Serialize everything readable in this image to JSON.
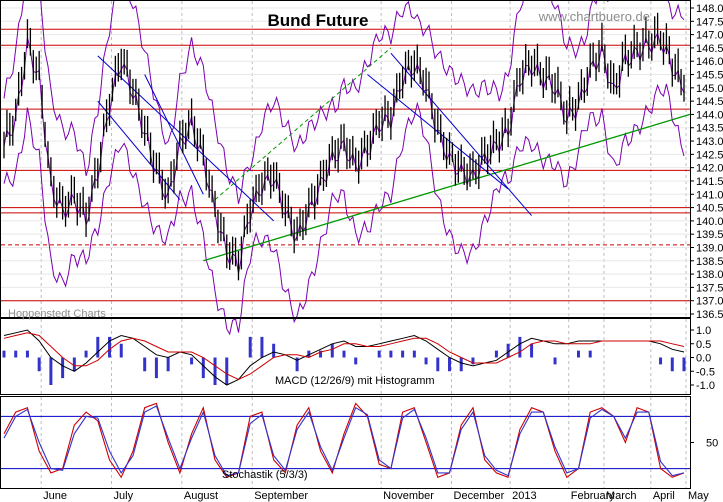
{
  "chart_data": [
    {
      "type": "line",
      "panel": "price",
      "title": "Bund Future",
      "watermark": "www.chartbuero.de",
      "source": "Hoppenstedt Charts",
      "ylim": [
        136.5,
        148.0
      ],
      "y_ticks": [
        "148.0",
        "147.5",
        "147.0",
        "146.5",
        "146.0",
        "145.5",
        "145.0",
        "144.5",
        "144.0",
        "143.5",
        "143.0",
        "142.5",
        "142.0",
        "141.5",
        "141.0",
        "140.5",
        "140.0",
        "139.5",
        "139.0",
        "138.5",
        "138.0",
        "137.5",
        "137.0",
        "136.5"
      ],
      "x_labels": [
        "June",
        "July",
        "August",
        "September",
        "November",
        "December",
        "2013",
        "February",
        "March",
        "April",
        "May"
      ],
      "series": [
        {
          "values": [
            143.0,
            144.0,
            146.8,
            145.5,
            141.5,
            140.5,
            141.0,
            140.2,
            142.0,
            144.5,
            146.2,
            145.0,
            143.5,
            142.0,
            141.0,
            143.0,
            143.8,
            142.5,
            140.5,
            139.0,
            138.5,
            140.5,
            141.5,
            141.8,
            140.5,
            139.5,
            140.5,
            141.5,
            142.5,
            143.0,
            142.2,
            142.8,
            143.8,
            144.0,
            145.5,
            146.0,
            145.2,
            143.5,
            142.5,
            142.0,
            141.8,
            142.5,
            143.0,
            143.5,
            145.5,
            146.0,
            145.5,
            145.2,
            144.0,
            144.5,
            145.8,
            146.5,
            145.0,
            146.2,
            146.5,
            146.8,
            147.0,
            146.0,
            145.0
          ]
        }
      ],
      "horizontal_levels": [
        147.2,
        146.6,
        144.2,
        141.9,
        140.5,
        140.3,
        139.1,
        137.0
      ],
      "trendlines": [
        {
          "from": [
            "June",
            138.5
          ],
          "to": [
            "May",
            144.0
          ],
          "color": "#009900"
        }
      ],
      "colors": {
        "price": "#000000",
        "bands": "#7a00b0",
        "levels": "#cc0000",
        "trend_down": "#0000cc",
        "trend_up": "#009900"
      },
      "grid": true
    },
    {
      "type": "line",
      "panel": "macd",
      "label": "MACD (12/26/9) mit Histogramm",
      "ylim": [
        -1.0,
        1.0
      ],
      "y_ticks": [
        "1.0",
        "0.5",
        "0.0",
        "-0.5",
        "-1.0"
      ],
      "series": [
        {
          "values": [
            0.8,
            0.9,
            1.0,
            0.6,
            0.0,
            -0.3,
            -0.5,
            -0.2,
            0.2,
            0.6,
            0.8,
            0.7,
            0.4,
            0.1,
            0.0,
            0.2,
            0.1,
            -0.3,
            -0.7,
            -1.0,
            -0.8,
            -0.3,
            0.0,
            0.2,
            0.1,
            -0.1,
            0.1,
            0.3,
            0.5,
            0.6,
            0.4,
            0.4,
            0.5,
            0.6,
            0.7,
            0.8,
            0.6,
            0.3,
            0.0,
            -0.2,
            -0.3,
            -0.2,
            -0.1,
            0.2,
            0.5,
            0.7,
            0.6,
            0.5,
            0.5,
            0.6,
            0.6,
            0.6,
            0.6,
            0.6,
            0.6,
            0.6,
            0.5,
            0.3,
            0.2
          ],
          "color": "#000000"
        },
        {
          "values": [
            0.7,
            0.8,
            0.9,
            0.8,
            0.4,
            0.0,
            -0.3,
            -0.3,
            -0.1,
            0.3,
            0.6,
            0.7,
            0.6,
            0.4,
            0.2,
            0.2,
            0.2,
            0.0,
            -0.3,
            -0.6,
            -0.8,
            -0.6,
            -0.3,
            0.0,
            0.1,
            0.1,
            0.0,
            0.2,
            0.3,
            0.5,
            0.5,
            0.4,
            0.4,
            0.5,
            0.6,
            0.7,
            0.7,
            0.5,
            0.2,
            0.0,
            -0.2,
            -0.2,
            -0.2,
            0.0,
            0.2,
            0.5,
            0.6,
            0.6,
            0.5,
            0.5,
            0.5,
            0.6,
            0.6,
            0.6,
            0.6,
            0.6,
            0.6,
            0.5,
            0.4
          ],
          "color": "#cc0000"
        }
      ],
      "colors": {
        "histogram": "#3333cc"
      }
    },
    {
      "type": "line",
      "panel": "stochastic",
      "label": "Stochastik (5/3/3)",
      "ylim": [
        0,
        100
      ],
      "y_ticks": [
        "50"
      ],
      "levels": [
        80,
        20
      ],
      "series": [
        {
          "values": [
            60,
            85,
            90,
            40,
            15,
            20,
            70,
            85,
            75,
            30,
            10,
            40,
            90,
            95,
            50,
            15,
            60,
            90,
            30,
            10,
            15,
            80,
            85,
            30,
            15,
            70,
            90,
            40,
            15,
            60,
            95,
            80,
            25,
            20,
            85,
            90,
            50,
            10,
            15,
            70,
            90,
            30,
            15,
            10,
            65,
            90,
            85,
            40,
            10,
            20,
            85,
            90,
            80,
            50,
            90,
            85,
            20,
            10,
            15
          ],
          "color": "#cc0000"
        },
        {
          "values": [
            55,
            80,
            88,
            50,
            20,
            18,
            60,
            80,
            78,
            40,
            15,
            35,
            85,
            92,
            55,
            20,
            55,
            85,
            35,
            12,
            15,
            72,
            82,
            35,
            18,
            65,
            85,
            45,
            18,
            55,
            90,
            82,
            30,
            20,
            78,
            88,
            55,
            15,
            15,
            65,
            85,
            35,
            18,
            12,
            60,
            85,
            85,
            45,
            15,
            20,
            78,
            88,
            80,
            55,
            85,
            85,
            28,
            12,
            15
          ],
          "color": "#3333cc"
        }
      ],
      "colors": {
        "levels": "#0000cc"
      }
    }
  ]
}
